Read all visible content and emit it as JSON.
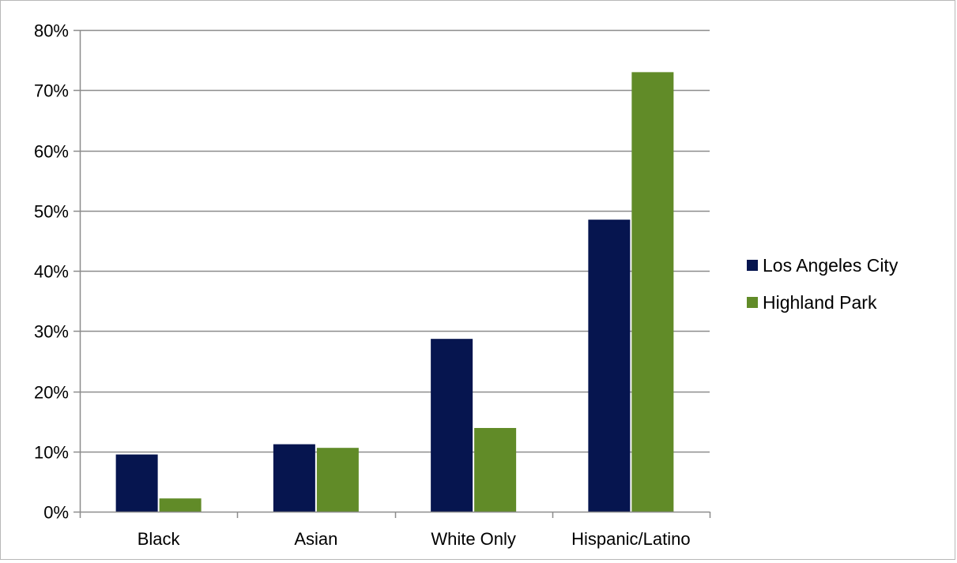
{
  "chart_data": {
    "type": "bar",
    "title": "",
    "xlabel": "",
    "ylabel": "",
    "categories": [
      "Black",
      "Asian",
      "White Only",
      "Hispanic/Latino"
    ],
    "series": [
      {
        "name": "Los Angeles City",
        "color": "#06154f",
        "values": [
          9.5,
          11.2,
          28.7,
          48.5
        ]
      },
      {
        "name": "Highland Park",
        "color": "#618b28",
        "values": [
          2.2,
          10.6,
          13.9,
          73.0
        ]
      }
    ],
    "ylim": [
      0,
      80
    ],
    "yticks": [
      0,
      10,
      20,
      30,
      40,
      50,
      60,
      70,
      80
    ],
    "ytick_labels": [
      "0%",
      "10%",
      "20%",
      "30%",
      "40%",
      "50%",
      "60%",
      "70%",
      "80%"
    ],
    "grid": true,
    "legend_position": "right"
  }
}
